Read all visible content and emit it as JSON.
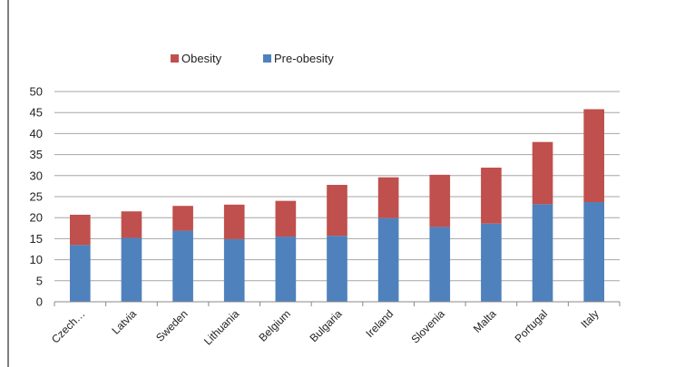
{
  "chart_data": {
    "type": "bar",
    "stacked": true,
    "categories": [
      "Czech…",
      "Latvia",
      "Sweden",
      "Lithuania",
      "Belgium",
      "Bulgaria",
      "Ireland",
      "Slovenia",
      "Malta",
      "Portugal",
      "Italy"
    ],
    "series": [
      {
        "name": "Pre-obesity",
        "color": "#4f81bd",
        "values": [
          13.5,
          15.2,
          16.9,
          14.9,
          15.5,
          15.7,
          19.9,
          17.8,
          18.6,
          23.2,
          23.7
        ]
      },
      {
        "name": "Obesity",
        "color": "#c0504d",
        "values": [
          7.2,
          6.3,
          5.9,
          8.2,
          8.5,
          12.1,
          9.7,
          12.4,
          13.3,
          14.8,
          22.1
        ]
      }
    ],
    "legend_order": [
      "Obesity",
      "Pre-obesity"
    ],
    "legend_position": "top",
    "ylim": [
      0,
      50
    ],
    "yticks": [
      0,
      5,
      10,
      15,
      20,
      25,
      30,
      35,
      40,
      45,
      50
    ],
    "grid": true,
    "title": "",
    "xlabel": "",
    "ylabel": ""
  }
}
